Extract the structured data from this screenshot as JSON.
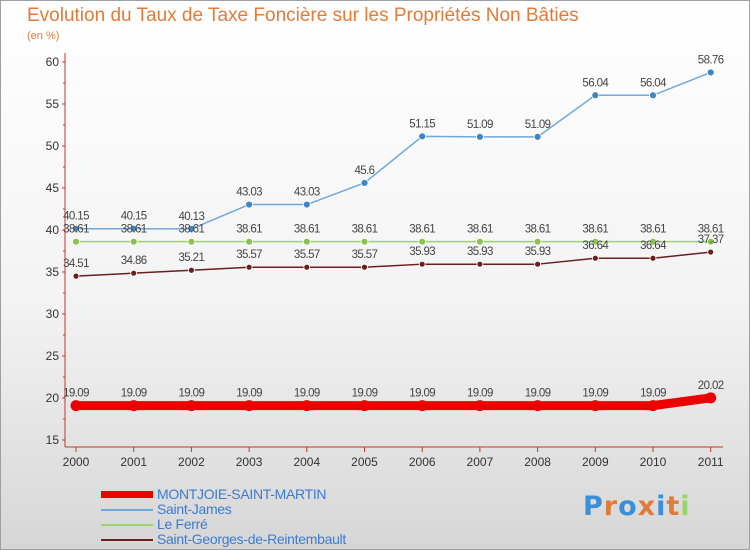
{
  "chart_data": {
    "type": "line",
    "title": "Evolution du Taux de Taxe Foncière sur les Propriétés Non Bâties",
    "unit_label": "(en %)",
    "x": [
      "2000",
      "2001",
      "2002",
      "2003",
      "2004",
      "2005",
      "2006",
      "2007",
      "2008",
      "2009",
      "2010",
      "2011"
    ],
    "ylim": [
      15,
      60
    ],
    "yticks": [
      15,
      20,
      25,
      30,
      35,
      40,
      45,
      50,
      55,
      60
    ],
    "grid": false,
    "legend_position": "bottom-left",
    "series": [
      {
        "name": "MONTJOIE-SAINT-MARTIN",
        "color": "#ee0000",
        "values": [
          19.09,
          19.09,
          19.09,
          19.09,
          19.09,
          19.09,
          19.09,
          19.09,
          19.09,
          19.09,
          19.09,
          20.02
        ]
      },
      {
        "name": "Saint-James",
        "color": "#6fa8dc",
        "values": [
          40.15,
          40.15,
          40.13,
          43.03,
          43.03,
          45.6,
          51.15,
          51.09,
          51.09,
          56.04,
          56.04,
          58.76
        ]
      },
      {
        "name": "Le Ferré",
        "color": "#9ad36a",
        "values": [
          38.61,
          38.61,
          38.61,
          38.61,
          38.61,
          38.61,
          38.61,
          38.61,
          38.61,
          38.61,
          38.61,
          38.61
        ]
      },
      {
        "name": "Saint-Georges-de-Reintembault",
        "color": "#6b1e1e",
        "values": [
          34.51,
          34.86,
          35.21,
          35.57,
          35.57,
          35.57,
          35.93,
          35.93,
          35.93,
          36.64,
          36.64,
          37.37
        ]
      }
    ]
  },
  "logo": {
    "text": "Proxiti",
    "colors": [
      "#3b8fd8",
      "#e07b39",
      "#3b8fd8",
      "#e07b39",
      "#3b8fd8",
      "#e07b39",
      "#9ad36a"
    ]
  }
}
